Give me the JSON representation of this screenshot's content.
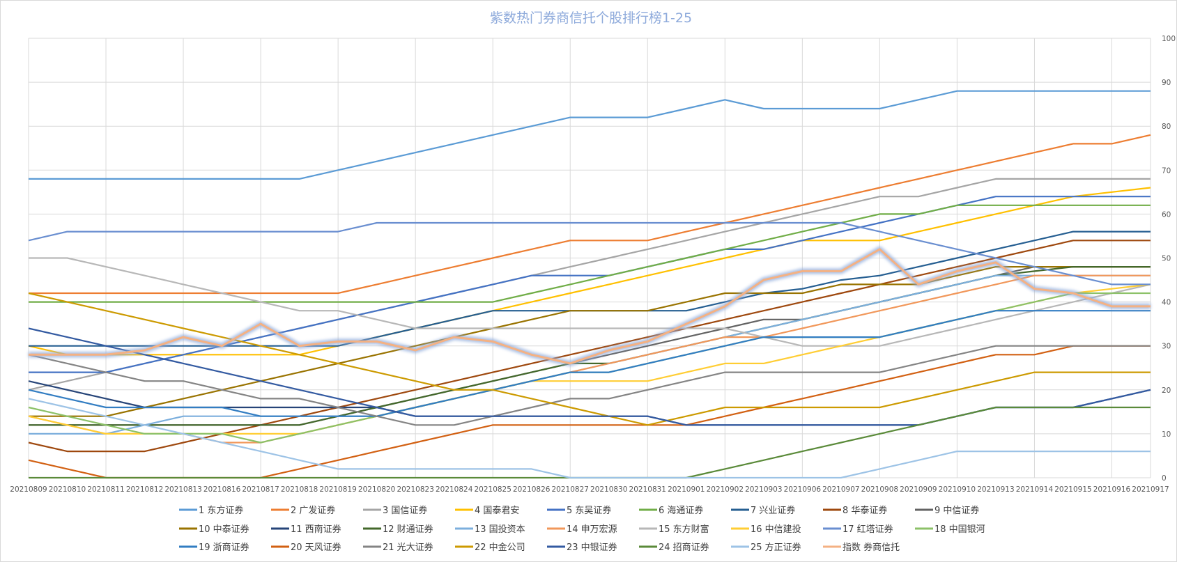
{
  "chart_data": {
    "type": "line",
    "title": "紫数热门券商信托个股排行榜1-25",
    "xlabel": "",
    "ylabel": "",
    "ylim": [
      0,
      100
    ],
    "yticks": [
      0,
      10,
      20,
      30,
      40,
      50,
      60,
      70,
      80,
      90,
      100
    ],
    "y_axis_side": "right",
    "grid": true,
    "legend_position": "bottom",
    "categories": [
      "20210809",
      "20210810",
      "20210811",
      "20210812",
      "20210813",
      "20210816",
      "20210817",
      "20210818",
      "20210819",
      "20210820",
      "20210823",
      "20210824",
      "20210825",
      "20210826",
      "20210827",
      "20210830",
      "20210831",
      "20210901",
      "20210902",
      "20210903",
      "20210906",
      "20210907",
      "20210908",
      "20210909",
      "20210910",
      "20210913",
      "20210914",
      "20210915",
      "20210916",
      "20210917"
    ],
    "series": [
      {
        "name": "1 东方证券",
        "color": "#5b9bd5",
        "values": [
          68,
          68,
          68,
          68,
          68,
          68,
          68,
          68,
          70,
          72,
          74,
          76,
          78,
          80,
          82,
          82,
          82,
          84,
          86,
          84,
          84,
          84,
          84,
          86,
          88,
          88,
          88,
          88,
          88,
          88
        ]
      },
      {
        "name": "2 广发证券",
        "color": "#ed7d31",
        "values": [
          42,
          42,
          42,
          42,
          42,
          42,
          42,
          42,
          42,
          44,
          46,
          48,
          50,
          52,
          54,
          54,
          54,
          56,
          58,
          60,
          62,
          64,
          66,
          68,
          70,
          72,
          74,
          76,
          76,
          78
        ]
      },
      {
        "name": "3 国信证券",
        "color": "#a5a5a5",
        "values": [
          20,
          22,
          24,
          26,
          28,
          30,
          32,
          34,
          36,
          38,
          40,
          42,
          44,
          46,
          48,
          50,
          52,
          54,
          56,
          58,
          60,
          62,
          64,
          64,
          66,
          68,
          68,
          68,
          68,
          68
        ]
      },
      {
        "name": "4 国泰君安",
        "color": "#ffc000",
        "values": [
          30,
          28,
          28,
          28,
          28,
          28,
          28,
          28,
          30,
          32,
          34,
          36,
          38,
          40,
          42,
          44,
          46,
          48,
          50,
          52,
          54,
          54,
          54,
          56,
          58,
          60,
          62,
          64,
          65,
          66
        ]
      },
      {
        "name": "5 东吴证券",
        "color": "#4472c4",
        "values": [
          24,
          24,
          24,
          26,
          28,
          30,
          32,
          34,
          36,
          38,
          40,
          42,
          44,
          46,
          46,
          46,
          48,
          50,
          52,
          52,
          54,
          56,
          58,
          60,
          62,
          64,
          64,
          64,
          64,
          64
        ]
      },
      {
        "name": "6 海通证券",
        "color": "#70ad47",
        "values": [
          40,
          40,
          40,
          40,
          40,
          40,
          40,
          40,
          40,
          40,
          40,
          40,
          40,
          42,
          44,
          46,
          48,
          50,
          52,
          54,
          56,
          58,
          60,
          60,
          62,
          62,
          62,
          62,
          62,
          62
        ]
      },
      {
        "name": "7 兴业证券",
        "color": "#255e91",
        "values": [
          30,
          30,
          30,
          30,
          30,
          30,
          30,
          30,
          30,
          32,
          34,
          36,
          38,
          38,
          38,
          38,
          38,
          38,
          40,
          42,
          43,
          45,
          46,
          48,
          50,
          52,
          54,
          56,
          56,
          56
        ]
      },
      {
        "name": "8 华泰证券",
        "color": "#9e480e",
        "values": [
          8,
          6,
          6,
          6,
          8,
          10,
          12,
          14,
          16,
          18,
          20,
          22,
          24,
          26,
          28,
          30,
          32,
          34,
          36,
          38,
          40,
          42,
          44,
          46,
          48,
          50,
          52,
          54,
          54,
          54
        ]
      },
      {
        "name": "9 中信证券",
        "color": "#636363",
        "values": [
          12,
          12,
          12,
          12,
          12,
          12,
          12,
          12,
          14,
          16,
          18,
          20,
          22,
          24,
          26,
          28,
          30,
          32,
          34,
          36,
          36,
          38,
          40,
          42,
          44,
          46,
          48,
          48,
          48,
          48
        ]
      },
      {
        "name": "10 中泰证券",
        "color": "#997300",
        "values": [
          14,
          14,
          14,
          16,
          18,
          20,
          22,
          24,
          26,
          28,
          30,
          32,
          34,
          36,
          38,
          38,
          38,
          40,
          42,
          42,
          42,
          44,
          44,
          44,
          46,
          48,
          48,
          48,
          48,
          48
        ]
      },
      {
        "name": "11 西南证券",
        "color": "#264478",
        "values": [
          22,
          20,
          18,
          16,
          16,
          16,
          16,
          16,
          16,
          16,
          14,
          14,
          14,
          14,
          14,
          14,
          14,
          12,
          12,
          12,
          12,
          12,
          12,
          12,
          14,
          16,
          16,
          16,
          18,
          20
        ]
      },
      {
        "name": "12 财通证券",
        "color": "#43682b",
        "values": [
          12,
          12,
          12,
          12,
          12,
          12,
          12,
          12,
          14,
          16,
          18,
          20,
          22,
          24,
          26,
          26,
          28,
          30,
          32,
          34,
          36,
          38,
          40,
          42,
          44,
          46,
          47,
          48,
          48,
          48
        ]
      },
      {
        "name": "13 国投资本",
        "color": "#7cafdd",
        "values": [
          10,
          10,
          10,
          12,
          14,
          14,
          14,
          14,
          14,
          14,
          16,
          18,
          20,
          22,
          24,
          26,
          28,
          30,
          32,
          34,
          36,
          38,
          40,
          42,
          44,
          46,
          46,
          46,
          46,
          46
        ]
      },
      {
        "name": "14 申万宏源",
        "color": "#f1975a",
        "values": [
          14,
          12,
          10,
          10,
          10,
          8,
          8,
          10,
          12,
          14,
          16,
          18,
          20,
          22,
          24,
          26,
          28,
          30,
          32,
          32,
          34,
          36,
          38,
          40,
          42,
          44,
          46,
          46,
          46,
          46
        ]
      },
      {
        "name": "15 东方财富",
        "color": "#b7b7b7",
        "values": [
          50,
          50,
          48,
          46,
          44,
          42,
          40,
          38,
          38,
          36,
          34,
          34,
          34,
          34,
          34,
          34,
          34,
          34,
          34,
          32,
          30,
          30,
          30,
          32,
          34,
          36,
          38,
          40,
          42,
          44
        ]
      },
      {
        "name": "16 中信建投",
        "color": "#ffcd33",
        "values": [
          14,
          12,
          10,
          10,
          10,
          10,
          10,
          10,
          12,
          14,
          16,
          18,
          20,
          22,
          22,
          22,
          22,
          24,
          26,
          26,
          28,
          30,
          32,
          34,
          36,
          38,
          40,
          42,
          43,
          44
        ]
      },
      {
        "name": "17 红塔证券",
        "color": "#698ed0",
        "values": [
          54,
          56,
          56,
          56,
          56,
          56,
          56,
          56,
          56,
          58,
          58,
          58,
          58,
          58,
          58,
          58,
          58,
          58,
          58,
          58,
          58,
          58,
          56,
          54,
          52,
          50,
          48,
          46,
          44,
          44
        ]
      },
      {
        "name": "18 中国银河",
        "color": "#8cc168",
        "values": [
          16,
          14,
          12,
          10,
          10,
          10,
          8,
          10,
          12,
          14,
          16,
          18,
          20,
          22,
          24,
          24,
          26,
          28,
          30,
          32,
          32,
          32,
          32,
          34,
          36,
          38,
          40,
          42,
          42,
          42
        ]
      },
      {
        "name": "19 浙商证券",
        "color": "#327dc2",
        "values": [
          20,
          18,
          16,
          16,
          16,
          16,
          14,
          14,
          14,
          14,
          16,
          18,
          20,
          22,
          24,
          24,
          26,
          28,
          30,
          32,
          32,
          32,
          32,
          34,
          36,
          38,
          38,
          38,
          38,
          38
        ]
      },
      {
        "name": "20 天风证券",
        "color": "#d26012",
        "values": [
          4,
          2,
          0,
          0,
          0,
          0,
          0,
          2,
          4,
          6,
          8,
          10,
          12,
          12,
          12,
          12,
          12,
          12,
          14,
          16,
          18,
          20,
          22,
          24,
          26,
          28,
          28,
          30,
          30,
          30
        ]
      },
      {
        "name": "21 光大证券",
        "color": "#848484",
        "values": [
          28,
          26,
          24,
          22,
          22,
          20,
          18,
          18,
          16,
          14,
          12,
          12,
          14,
          16,
          18,
          18,
          20,
          22,
          24,
          24,
          24,
          24,
          24,
          26,
          28,
          30,
          30,
          30,
          30,
          30
        ]
      },
      {
        "name": "22 中金公司",
        "color": "#cc9a00",
        "values": [
          42,
          40,
          38,
          36,
          34,
          32,
          30,
          28,
          26,
          24,
          22,
          20,
          20,
          18,
          16,
          14,
          12,
          14,
          16,
          16,
          16,
          16,
          16,
          18,
          20,
          22,
          24,
          24,
          24,
          24
        ]
      },
      {
        "name": "23 中银证券",
        "color": "#335aa1",
        "values": [
          34,
          32,
          30,
          28,
          26,
          24,
          22,
          20,
          18,
          16,
          14,
          14,
          14,
          14,
          14,
          14,
          14,
          12,
          12,
          12,
          12,
          12,
          12,
          12,
          14,
          16,
          16,
          16,
          18,
          20
        ]
      },
      {
        "name": "24 招商证券",
        "color": "#5a8a39",
        "values": [
          0,
          0,
          0,
          0,
          0,
          0,
          0,
          0,
          0,
          0,
          0,
          0,
          0,
          0,
          0,
          0,
          0,
          0,
          2,
          4,
          6,
          8,
          10,
          12,
          14,
          16,
          16,
          16,
          16,
          16
        ]
      },
      {
        "name": "25 方正证券",
        "color": "#9dc3e6",
        "values": [
          18,
          16,
          14,
          12,
          10,
          8,
          6,
          4,
          2,
          2,
          2,
          2,
          2,
          2,
          0,
          0,
          0,
          0,
          0,
          0,
          0,
          0,
          2,
          4,
          6,
          6,
          6,
          6,
          6,
          6
        ]
      },
      {
        "name": "指数 券商信托",
        "color": "#f4b183",
        "glow": "#8eaadb",
        "values": [
          28,
          28,
          28,
          29,
          32,
          30,
          35,
          30,
          31,
          31,
          29,
          32,
          31,
          28,
          26,
          29,
          31,
          35,
          39,
          45,
          47,
          47,
          52,
          44,
          47,
          49,
          43,
          42,
          39,
          39
        ]
      }
    ]
  }
}
